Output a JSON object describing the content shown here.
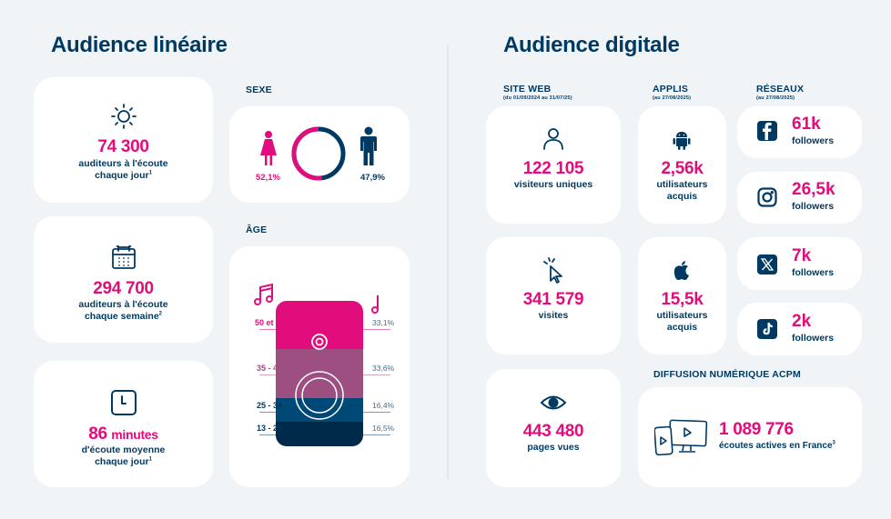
{
  "linear": {
    "title": "Audience linéaire",
    "daily": {
      "icon": "sun-icon",
      "value": "74 300",
      "line1": "auditeurs à l'écoute",
      "line2": "chaque jour",
      "sup": "1"
    },
    "weekly": {
      "icon": "calendar-icon",
      "value": "294 700",
      "line1": "auditeurs à l'écoute",
      "line2": "chaque semaine",
      "sup": "2"
    },
    "minutes": {
      "icon": "clock-icon",
      "value": "86",
      "unit": "minutes",
      "line1": "d'écoute moyenne",
      "line2": "chaque jour",
      "sup": "1"
    },
    "sex": {
      "label": "SEXE",
      "female": {
        "icon": "female-icon",
        "pct": "52,1%",
        "value": 52.1
      },
      "male": {
        "icon": "male-icon",
        "pct": "47,9%",
        "value": 47.9
      }
    },
    "age": {
      "label": "ÂGE",
      "groups": [
        {
          "range": "50 et +",
          "pct": "33,1%",
          "value": 33.1,
          "color": "#e20d7c"
        },
        {
          "range": "35 - 49",
          "pct": "33,6%",
          "value": 33.6,
          "color": "#9c4f80"
        },
        {
          "range": "25 - 34",
          "pct": "16,4%",
          "value": 16.4,
          "color": "#004875"
        },
        {
          "range": "13 - 24",
          "pct": "16,5%",
          "value": 16.5,
          "color": "#002a49"
        }
      ]
    }
  },
  "digital": {
    "title": "Audience digitale",
    "web": {
      "label": "SITE WEB",
      "period": "(du 01/09/2024 au 31/07/25)",
      "unique": {
        "icon": "user-icon",
        "value": "122 105",
        "line1": "visiteurs uniques"
      },
      "visits": {
        "icon": "cursor-click-icon",
        "value": "341 579",
        "line1": "visites"
      },
      "pageviews": {
        "icon": "eye-icon",
        "value": "443 480",
        "line1": "pages vues"
      }
    },
    "apps": {
      "label": "APPLIS",
      "period": "(au 27/08/2025)",
      "android": {
        "icon": "android-icon",
        "value": "2,56k",
        "line1": "utilisateurs",
        "line2": "acquis"
      },
      "apple": {
        "icon": "apple-icon",
        "value": "15,5k",
        "line1": "utilisateurs",
        "line2": "acquis"
      }
    },
    "social": {
      "label": "RÉSEAUX",
      "period": "(au 27/08/2025)",
      "items": [
        {
          "icon": "facebook-icon",
          "value": "61k",
          "text": "followers"
        },
        {
          "icon": "instagram-icon",
          "value": "26,5k",
          "text": "followers"
        },
        {
          "icon": "x-icon",
          "value": "7k",
          "text": "followers"
        },
        {
          "icon": "tiktok-icon",
          "value": "2k",
          "text": "followers"
        }
      ]
    },
    "acpm": {
      "label": "DIFFUSION NUMÉRIQUE ACPM",
      "icon": "devices-play-icon",
      "value": "1 089 776",
      "text": "écoutes actives en France",
      "sup": "3"
    }
  },
  "colors": {
    "pink": "#e20d7c",
    "navy": "#003a63",
    "background": "#f1f4f6"
  }
}
